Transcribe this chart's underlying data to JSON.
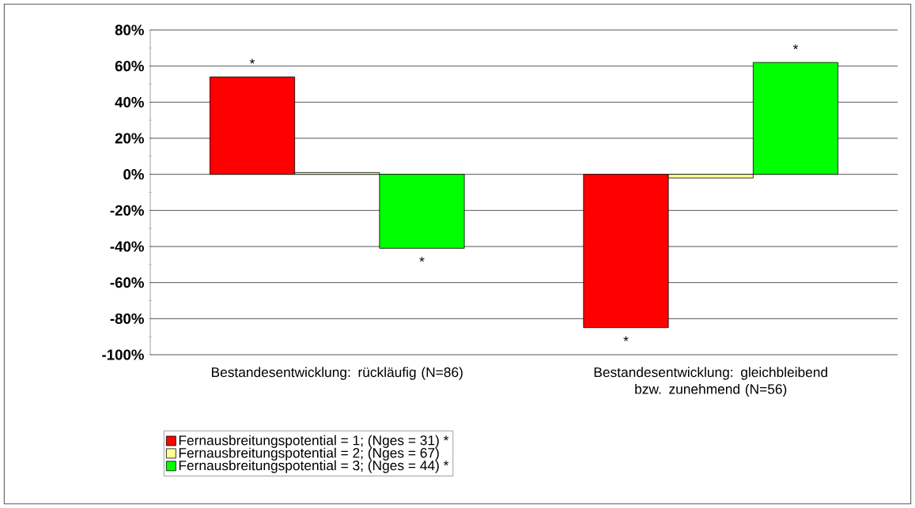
{
  "chart_data": {
    "type": "bar",
    "categories": [
      "Bestandesentwicklung: rückläufig (N=86)",
      "Bestandesentwicklung: gleichbleibend bzw. zunehmend  (N=56)"
    ],
    "series": [
      {
        "name": "Fernausbreitungspotential = 1; (Nges = 31) *",
        "color": "#ff0000",
        "values": [
          54,
          -85
        ],
        "value_labels": [
          "*",
          "*"
        ]
      },
      {
        "name": "Fernausbreitungspotential = 2; (Nges = 67)",
        "color": "#ffff99",
        "values": [
          1,
          -2
        ]
      },
      {
        "name": "Fernausbreitungspotential = 3; (Nges = 44) *",
        "color": "#00ff00",
        "values": [
          -41,
          62
        ],
        "value_labels": [
          "*",
          "*"
        ]
      }
    ],
    "ylim": [
      -100,
      80
    ],
    "yticks": [
      {
        "value": -100,
        "label": "-100%"
      },
      {
        "value": -80,
        "label": "-80%"
      },
      {
        "value": -60,
        "label": "-60%"
      },
      {
        "value": -40,
        "label": "-40%"
      },
      {
        "value": -20,
        "label": "-20%"
      },
      {
        "value": 0,
        "label": "0%"
      },
      {
        "value": 20,
        "label": "20%"
      },
      {
        "value": 40,
        "label": "40%"
      },
      {
        "value": 60,
        "label": "60%"
      },
      {
        "value": 80,
        "label": "80%"
      }
    ],
    "grid": "y",
    "legend": "bottom left"
  }
}
